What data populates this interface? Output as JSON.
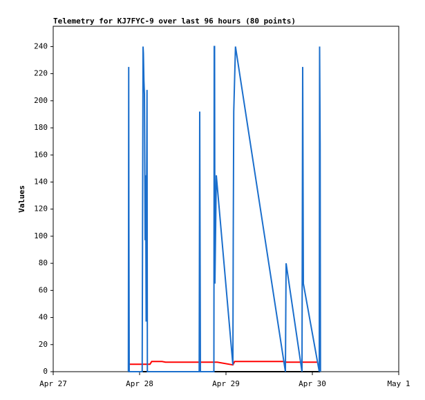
{
  "chart_data": {
    "type": "line",
    "title": "Telemetry for KJ7FYC-9 over last 96 hours (80 points)",
    "y_label": "Values",
    "xlim": [
      0,
      4
    ],
    "xticks": [
      {
        "value": 0,
        "label": "Apr 27"
      },
      {
        "value": 1,
        "label": "Apr 28"
      },
      {
        "value": 2,
        "label": "Apr 29"
      },
      {
        "value": 3,
        "label": "Apr 30"
      },
      {
        "value": 4,
        "label": "May 1"
      }
    ],
    "ylim": [
      0,
      255
    ],
    "yticks": [
      0,
      20,
      40,
      60,
      80,
      100,
      120,
      140,
      160,
      180,
      200,
      220,
      240
    ],
    "series": [
      {
        "color": "#000000",
        "x": [
          0.87,
          3.09
        ],
        "values": [
          0,
          0
        ]
      },
      {
        "color": "#ff0000",
        "x": [
          0.88,
          1.12,
          1.14,
          1.26,
          1.3,
          1.9,
          2.08,
          2.1,
          2.66,
          2.7,
          3.06
        ],
        "values": [
          5.5,
          5.5,
          7.5,
          7.5,
          7,
          7,
          5,
          7.5,
          7.5,
          7,
          7
        ]
      },
      {
        "color": "#1a6ecc",
        "x": [
          0.87,
          0.872,
          0.874,
          0.876,
          0.88,
          1.03,
          1.04,
          1.044,
          1.05,
          1.056,
          1.064,
          1.07,
          1.076,
          1.08,
          1.086,
          1.09,
          1.69,
          1.696,
          1.7,
          1.704,
          1.86,
          1.864,
          1.868,
          1.872,
          1.888,
          2.08,
          2.084,
          2.09,
          2.11,
          2.688,
          2.696,
          2.88,
          2.884,
          2.888,
          2.896,
          3.08,
          3.084,
          3.09,
          3.094
        ],
        "values": [
          0,
          97,
          225,
          112,
          0,
          0,
          240,
          235,
          215,
          205,
          97,
          145,
          37,
          108,
          208,
          0,
          0,
          192,
          97,
          0,
          0,
          240,
          240,
          65,
          145,
          5,
          97,
          192,
          240,
          0,
          80,
          0,
          112,
          225,
          65,
          0,
          240,
          168,
          0
        ]
      }
    ]
  }
}
